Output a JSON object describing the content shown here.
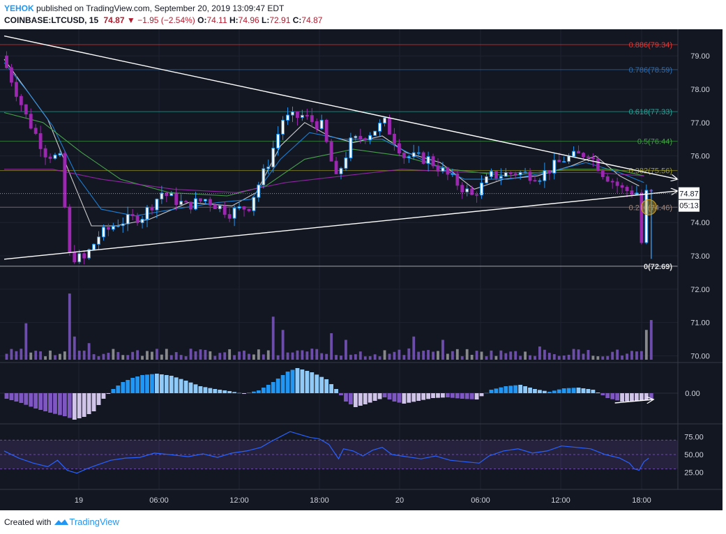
{
  "header": {
    "author": "YEHOK",
    "published_text": "published on TradingView.com, September 20, 2019 13:09:47 EDT",
    "symbol": "COINBASE:LTCUSD, 15",
    "last": "74.87",
    "change_arrow": "▼",
    "change": "−1.95 (−2.54%)",
    "o_label": "O:",
    "o": "74.11",
    "h_label": "H:",
    "h": "74.96",
    "l_label": "L:",
    "l": "72.91",
    "c_label": "C:",
    "c": "74.87"
  },
  "footer": {
    "created_with": "Created with",
    "brand": "TradingView"
  },
  "colors": {
    "background": "#131722",
    "up": "#2196f3",
    "down": "#9c27b0",
    "volume": "#7e57c2",
    "macd_pos": "#2196f3",
    "macd_neg": "#7e57c2",
    "rsi_line": "#2962ff",
    "trendline": "#ffffff",
    "ma_white": "#e0e0e0",
    "ma_blue": "#1e88e5",
    "ma_green": "#4caf50",
    "ma_purple": "#9c27b0"
  },
  "chart_data": {
    "type": "candlestick",
    "price_axis": {
      "ticks": [
        "79.00",
        "78.00",
        "77.00",
        "76.00",
        "74.00",
        "73.00",
        "72.00",
        "71.00",
        "70.00"
      ],
      "range": [
        69.8,
        79.8
      ],
      "current_price": "74.87",
      "countdown": "05:13"
    },
    "time_axis": {
      "ticks": [
        "19",
        "06:00",
        "12:00",
        "18:00",
        "20",
        "06:00",
        "12:00",
        "18:00"
      ]
    },
    "fib_levels": [
      {
        "label": "0.886(79.34)",
        "value": 79.34,
        "color": "#e53935"
      },
      {
        "label": "0.786(78.59)",
        "value": 78.59,
        "color": "#2e6fb5"
      },
      {
        "label": "0.618(77.33)",
        "value": 77.33,
        "color": "#26a69a"
      },
      {
        "label": "0.5(76.44)",
        "value": 76.44,
        "color": "#43a047"
      },
      {
        "label": "0.382(75.56)",
        "value": 75.56,
        "color": "#9e9d24"
      },
      {
        "label": "0.236(74.46)",
        "value": 74.46,
        "color": "#a1887f"
      },
      {
        "label": "0(72.69)",
        "value": 72.69,
        "color": "#e0e0e0"
      }
    ],
    "price_path": [
      {
        "t": 0,
        "p": 79.0
      },
      {
        "t": 2,
        "p": 78.3
      },
      {
        "t": 5,
        "p": 77.2
      },
      {
        "t": 9,
        "p": 76.1
      },
      {
        "t": 12,
        "p": 75.9
      },
      {
        "t": 14,
        "p": 73.0
      },
      {
        "t": 17,
        "p": 72.9
      },
      {
        "t": 20,
        "p": 73.6
      },
      {
        "t": 24,
        "p": 74.0
      },
      {
        "t": 29,
        "p": 74.2
      },
      {
        "t": 33,
        "p": 74.9
      },
      {
        "t": 38,
        "p": 74.5
      },
      {
        "t": 42,
        "p": 74.7
      },
      {
        "t": 47,
        "p": 74.3
      },
      {
        "t": 51,
        "p": 74.5
      },
      {
        "t": 55,
        "p": 75.8
      },
      {
        "t": 58,
        "p": 77.1
      },
      {
        "t": 62,
        "p": 77.2
      },
      {
        "t": 66,
        "p": 76.9
      },
      {
        "t": 69,
        "p": 75.3
      },
      {
        "t": 72,
        "p": 76.4
      },
      {
        "t": 76,
        "p": 76.7
      },
      {
        "t": 79,
        "p": 77.0
      },
      {
        "t": 83,
        "p": 76.0
      },
      {
        "t": 88,
        "p": 75.9
      },
      {
        "t": 93,
        "p": 75.3
      },
      {
        "t": 97,
        "p": 74.8
      },
      {
        "t": 101,
        "p": 75.4
      },
      {
        "t": 106,
        "p": 75.5
      },
      {
        "t": 111,
        "p": 75.4
      },
      {
        "t": 116,
        "p": 75.9
      },
      {
        "t": 121,
        "p": 76.1
      },
      {
        "t": 124,
        "p": 75.5
      },
      {
        "t": 128,
        "p": 75.0
      },
      {
        "t": 131,
        "p": 74.9
      },
      {
        "t": 132,
        "p": 73.4
      },
      {
        "t": 133,
        "p": 74.87
      }
    ],
    "ma_series": [
      {
        "color_key": "ma_white",
        "points": [
          [
            0,
            78.9
          ],
          [
            4,
            78.1
          ],
          [
            9,
            77.1
          ],
          [
            14,
            75.3
          ],
          [
            18,
            73.9
          ],
          [
            23,
            73.9
          ],
          [
            30,
            74.1
          ],
          [
            38,
            74.6
          ],
          [
            47,
            74.5
          ],
          [
            52,
            74.9
          ],
          [
            57,
            76.3
          ],
          [
            62,
            77.0
          ],
          [
            67,
            76.6
          ],
          [
            72,
            76.4
          ],
          [
            78,
            76.6
          ],
          [
            83,
            76.1
          ],
          [
            90,
            75.8
          ],
          [
            97,
            75.0
          ],
          [
            103,
            75.3
          ],
          [
            110,
            75.4
          ],
          [
            117,
            75.7
          ],
          [
            122,
            76.0
          ],
          [
            127,
            75.4
          ],
          [
            131,
            75.1
          ]
        ]
      },
      {
        "color_key": "ma_blue",
        "points": [
          [
            0,
            78.8
          ],
          [
            5,
            77.9
          ],
          [
            10,
            76.9
          ],
          [
            15,
            75.4
          ],
          [
            20,
            74.4
          ],
          [
            27,
            74.2
          ],
          [
            35,
            74.4
          ],
          [
            44,
            74.6
          ],
          [
            51,
            74.7
          ],
          [
            57,
            75.9
          ],
          [
            63,
            76.7
          ],
          [
            70,
            76.5
          ],
          [
            78,
            76.5
          ],
          [
            86,
            75.9
          ],
          [
            95,
            75.3
          ],
          [
            104,
            75.3
          ],
          [
            112,
            75.5
          ],
          [
            120,
            75.8
          ],
          [
            127,
            75.5
          ],
          [
            132,
            75.2
          ]
        ]
      },
      {
        "color_key": "ma_green",
        "points": [
          [
            0,
            77.3
          ],
          [
            8,
            77.0
          ],
          [
            16,
            76.1
          ],
          [
            24,
            75.3
          ],
          [
            34,
            74.9
          ],
          [
            46,
            74.8
          ],
          [
            54,
            75.1
          ],
          [
            62,
            75.9
          ],
          [
            72,
            76.2
          ],
          [
            82,
            76.0
          ],
          [
            92,
            75.6
          ],
          [
            104,
            75.4
          ],
          [
            116,
            75.6
          ],
          [
            126,
            75.6
          ],
          [
            132,
            75.4
          ]
        ]
      },
      {
        "color_key": "ma_purple",
        "points": [
          [
            0,
            75.6
          ],
          [
            10,
            75.6
          ],
          [
            20,
            75.3
          ],
          [
            35,
            75.0
          ],
          [
            48,
            74.9
          ],
          [
            58,
            75.2
          ],
          [
            70,
            75.4
          ],
          [
            82,
            75.6
          ],
          [
            96,
            75.5
          ],
          [
            110,
            75.5
          ],
          [
            122,
            75.5
          ],
          [
            132,
            75.4
          ]
        ]
      }
    ],
    "trendlines": [
      {
        "from": [
          0,
          79.6
        ],
        "to": [
          139,
          75.3
        ]
      },
      {
        "from": [
          0,
          72.9
        ],
        "to": [
          139,
          74.95
        ]
      }
    ],
    "volume_spikes": [
      {
        "t": 4,
        "v": 0.55
      },
      {
        "t": 13,
        "v": 1.0
      },
      {
        "t": 14,
        "v": 0.35
      },
      {
        "t": 17,
        "v": 0.25
      },
      {
        "t": 55,
        "v": 0.65
      },
      {
        "t": 57,
        "v": 0.45
      },
      {
        "t": 67,
        "v": 0.4
      },
      {
        "t": 70,
        "v": 0.3
      },
      {
        "t": 84,
        "v": 0.35
      },
      {
        "t": 90,
        "v": 0.3
      },
      {
        "t": 110,
        "v": 0.2
      },
      {
        "t": 132,
        "v": 0.45
      },
      {
        "t": 133,
        "v": 0.6
      }
    ],
    "macd_histogram": {
      "axis_tick": "0.00",
      "bars": [
        [
          0,
          -0.8
        ],
        [
          3,
          -1.4
        ],
        [
          6,
          -2.2
        ],
        [
          9,
          -2.8
        ],
        [
          12,
          -3.3
        ],
        [
          14,
          -3.8
        ],
        [
          16,
          -3.4
        ],
        [
          18,
          -2.6
        ],
        [
          20,
          -0.8
        ],
        [
          22,
          0.6
        ],
        [
          24,
          1.6
        ],
        [
          26,
          2.2
        ],
        [
          28,
          2.6
        ],
        [
          31,
          2.8
        ],
        [
          34,
          2.5
        ],
        [
          37,
          1.8
        ],
        [
          40,
          1.0
        ],
        [
          43,
          0.6
        ],
        [
          46,
          0.3
        ],
        [
          49,
          -0.1
        ],
        [
          52,
          0.4
        ],
        [
          55,
          1.6
        ],
        [
          58,
          3.1
        ],
        [
          60,
          3.6
        ],
        [
          63,
          3.0
        ],
        [
          66,
          2.0
        ],
        [
          68,
          0.6
        ],
        [
          70,
          -1.2
        ],
        [
          72,
          -2.0
        ],
        [
          74,
          -1.6
        ],
        [
          76,
          -1.1
        ],
        [
          78,
          -0.6
        ],
        [
          80,
          -1.2
        ],
        [
          82,
          -1.5
        ],
        [
          85,
          -1.1
        ],
        [
          88,
          -0.7
        ],
        [
          91,
          -0.6
        ],
        [
          94,
          -0.8
        ],
        [
          97,
          -0.9
        ],
        [
          100,
          0.5
        ],
        [
          103,
          1.0
        ],
        [
          106,
          1.2
        ],
        [
          109,
          0.6
        ],
        [
          112,
          0.2
        ],
        [
          115,
          0.7
        ],
        [
          118,
          0.8
        ],
        [
          121,
          0.5
        ],
        [
          124,
          -0.7
        ],
        [
          127,
          -1.2
        ],
        [
          130,
          -1.1
        ],
        [
          133,
          -1.0
        ]
      ]
    },
    "rsi": {
      "ticks": [
        "75.00",
        "50.00",
        "25.00"
      ],
      "band": [
        30,
        70
      ],
      "points": [
        [
          0,
          55
        ],
        [
          3,
          45
        ],
        [
          6,
          38
        ],
        [
          9,
          33
        ],
        [
          11,
          42
        ],
        [
          13,
          28
        ],
        [
          15,
          24
        ],
        [
          17,
          30
        ],
        [
          19,
          35
        ],
        [
          22,
          42
        ],
        [
          25,
          45
        ],
        [
          28,
          46
        ],
        [
          31,
          52
        ],
        [
          34,
          50
        ],
        [
          38,
          47
        ],
        [
          41,
          51
        ],
        [
          44,
          46
        ],
        [
          47,
          52
        ],
        [
          50,
          55
        ],
        [
          53,
          60
        ],
        [
          55,
          68
        ],
        [
          57,
          75
        ],
        [
          59,
          82
        ],
        [
          61,
          78
        ],
        [
          63,
          74
        ],
        [
          65,
          72
        ],
        [
          67,
          64
        ],
        [
          69,
          44
        ],
        [
          70,
          58
        ],
        [
          72,
          55
        ],
        [
          74,
          48
        ],
        [
          76,
          56
        ],
        [
          78,
          60
        ],
        [
          80,
          50
        ],
        [
          83,
          47
        ],
        [
          86,
          44
        ],
        [
          89,
          48
        ],
        [
          92,
          42
        ],
        [
          95,
          40
        ],
        [
          98,
          38
        ],
        [
          100,
          48
        ],
        [
          103,
          55
        ],
        [
          106,
          58
        ],
        [
          109,
          52
        ],
        [
          112,
          55
        ],
        [
          115,
          62
        ],
        [
          118,
          60
        ],
        [
          121,
          58
        ],
        [
          124,
          50
        ],
        [
          127,
          45
        ],
        [
          129,
          38
        ],
        [
          130,
          30
        ],
        [
          131,
          28
        ],
        [
          132,
          40
        ],
        [
          133,
          45
        ]
      ]
    }
  }
}
